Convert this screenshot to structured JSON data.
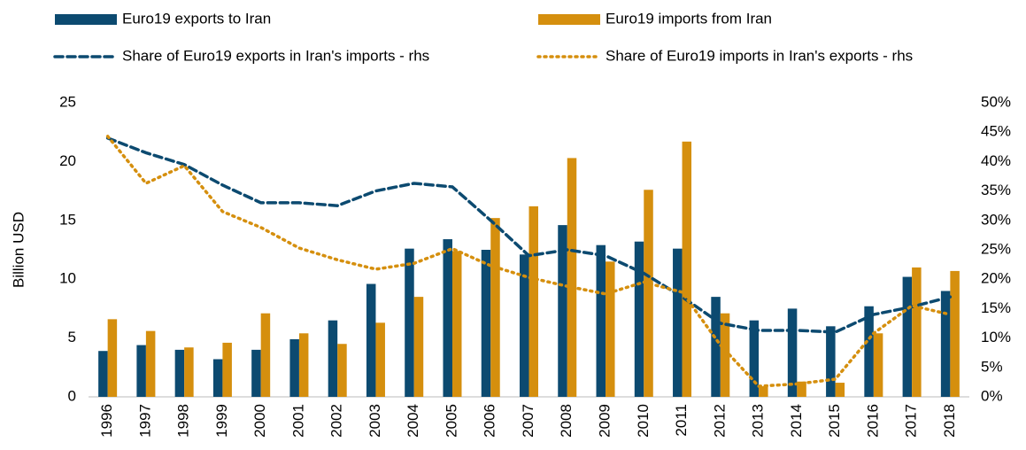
{
  "chart_data": {
    "type": "bar_line",
    "y_label": "Billion USD",
    "categories": [
      "1996",
      "1997",
      "1998",
      "1999",
      "2000",
      "2001",
      "2002",
      "2003",
      "2004",
      "2005",
      "2006",
      "2007",
      "2008",
      "2009",
      "2010",
      "2011",
      "2012",
      "2013",
      "2014",
      "2015",
      "2016",
      "2017",
      "2018"
    ],
    "series": [
      {
        "name": "Euro19 exports to Iran",
        "type": "bar",
        "color": "#0c4a70",
        "values": [
          3.9,
          4.4,
          4.0,
          3.2,
          4.0,
          4.9,
          6.5,
          9.6,
          12.6,
          13.4,
          12.5,
          12.1,
          14.6,
          12.9,
          13.2,
          12.6,
          8.5,
          6.5,
          7.5,
          6.0,
          7.7,
          10.2,
          9.0
        ]
      },
      {
        "name": "Euro19 imports from Iran",
        "type": "bar",
        "color": "#d58f0e",
        "values": [
          6.6,
          5.6,
          4.2,
          4.6,
          7.1,
          5.4,
          4.5,
          6.3,
          8.5,
          12.4,
          15.2,
          16.2,
          20.3,
          11.5,
          17.6,
          21.7,
          7.1,
          0.9,
          1.3,
          1.2,
          5.4,
          11.0,
          10.7
        ]
      },
      {
        "name": "Share of Euro19 exports in Iran's imports - rhs",
        "type": "line",
        "dash": "dashed",
        "axis": "y2",
        "color": "#0c4a70",
        "values": [
          44,
          41.5,
          39.5,
          36,
          33,
          33,
          32.5,
          35,
          36.3,
          35.7,
          30,
          24,
          25,
          24,
          21,
          17,
          12.5,
          11.3,
          11.3,
          11,
          14,
          15.3,
          17
        ]
      },
      {
        "name": "Share of Euro19 imports in Iran's exports - rhs",
        "type": "line",
        "dash": "dotted",
        "axis": "y2",
        "color": "#d58f0e",
        "values": [
          44.3,
          36.3,
          39.3,
          31.5,
          28.8,
          25.3,
          23.3,
          21.7,
          22.7,
          25.2,
          22.3,
          20.3,
          18.8,
          17.5,
          19.5,
          17.8,
          8.8,
          1.8,
          2.2,
          3,
          10.8,
          15.5,
          14
        ]
      }
    ],
    "ylim": [
      0,
      25
    ],
    "yticks": [
      0,
      5,
      10,
      15,
      20,
      25
    ],
    "y2lim": [
      0,
      50
    ],
    "y2ticks": [
      {
        "value": 0,
        "label": "0%"
      },
      {
        "value": 5,
        "label": "5%"
      },
      {
        "value": 10,
        "label": "10%"
      },
      {
        "value": 15,
        "label": "15%"
      },
      {
        "value": 20,
        "label": "20%"
      },
      {
        "value": 25,
        "label": "25%"
      },
      {
        "value": 30,
        "label": "30%"
      },
      {
        "value": 35,
        "label": "35%"
      },
      {
        "value": 40,
        "label": "40%"
      },
      {
        "value": 45,
        "label": "45%"
      },
      {
        "value": 50,
        "label": "50%"
      }
    ]
  }
}
